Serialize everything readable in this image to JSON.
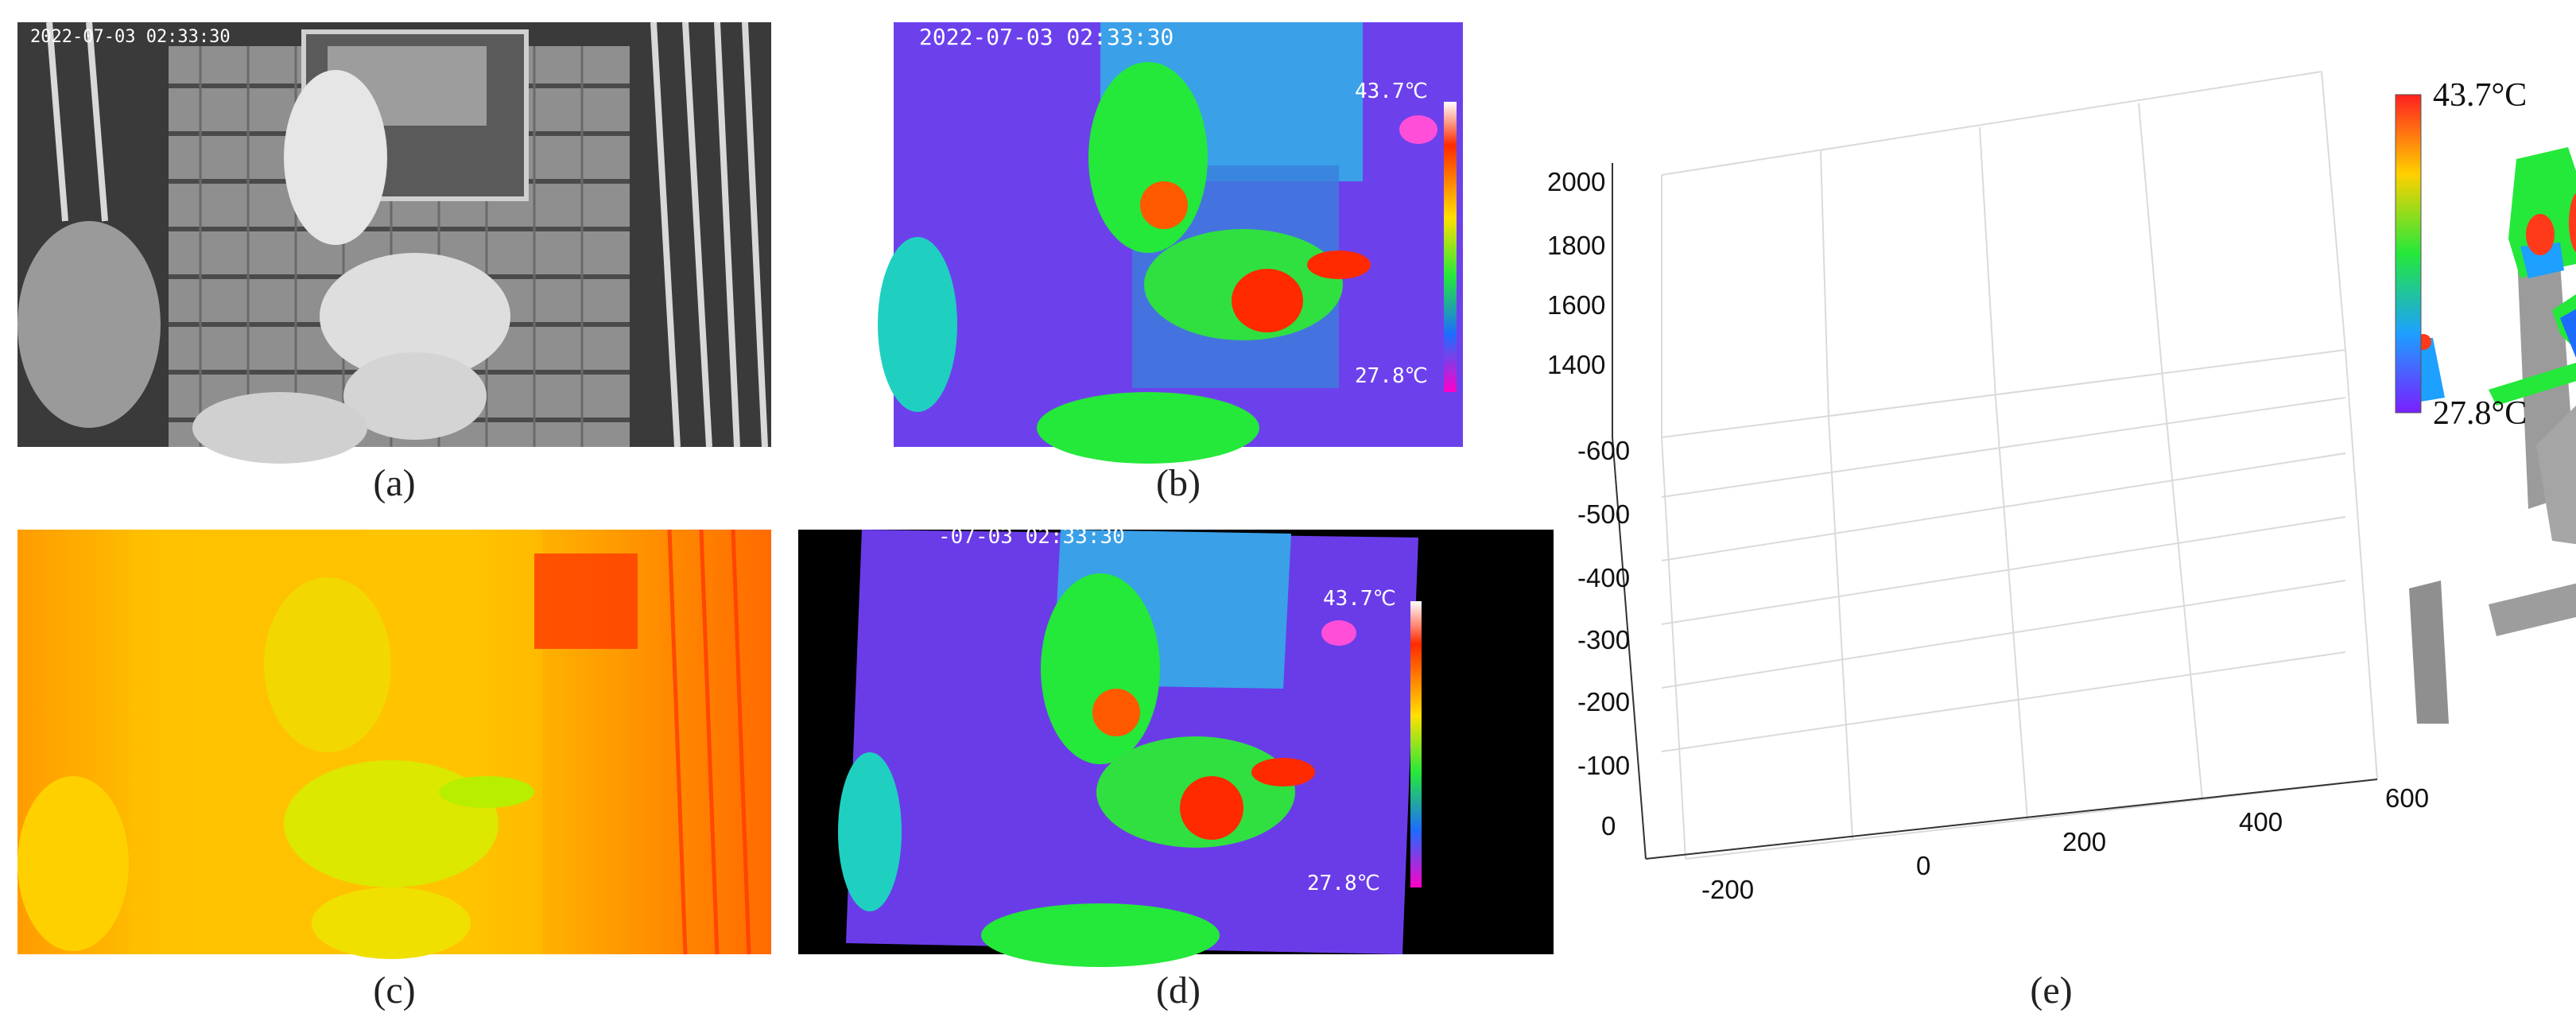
{
  "panels": {
    "a": {
      "caption": "(a)",
      "timestamp": "2022-07-03 02:33:30"
    },
    "b": {
      "caption": "(b)",
      "timestamp": "2022-07-03 02:33:30",
      "temp_max": "43.7℃",
      "temp_min": "27.8℃"
    },
    "c": {
      "caption": "(c)"
    },
    "d": {
      "caption": "(d)",
      "timestamp": "-07-03 02:33:30",
      "temp_max": "43.7℃",
      "temp_min": "27.8℃"
    },
    "e": {
      "caption": "(e)"
    }
  },
  "plot3d": {
    "z_ticks": [
      "2000",
      "1800",
      "1600",
      "1400"
    ],
    "y_ticks": [
      "-600",
      "-500",
      "-400",
      "-300",
      "-200",
      "-100",
      "0"
    ],
    "x_ticks": [
      "-200",
      "0",
      "200",
      "400",
      "600"
    ],
    "colorbar": {
      "max": "43.7°C",
      "min": "27.8°C"
    }
  },
  "colors": {
    "thermal_hot": "#ff2a00",
    "thermal_cold": "#7a1fff",
    "thermal_mid": "#24e83a",
    "depth_yellow": "#f2d800",
    "depth_orange": "#ff9c00"
  }
}
